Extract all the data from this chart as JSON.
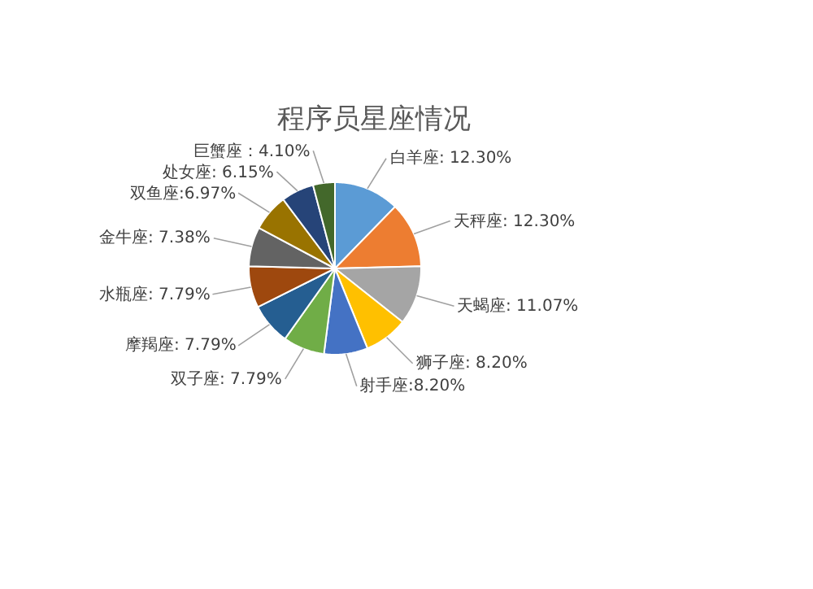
{
  "chart_data": {
    "type": "pie",
    "title": "程序员星座情况",
    "categories": [
      "白羊座: 12.30%",
      "天秤座: 12.30%",
      "天蝎座: 11.07%",
      "狮子座: 8.20%",
      "射手座:8.20%",
      "双子座: 7.79%",
      "摩羯座: 7.79%",
      "水瓶座: 7.79%",
      "金牛座: 7.38%",
      "双鱼座:6.97%",
      "处女座: 6.15%",
      "巨蟹座：4.10%"
    ],
    "values": [
      12.3,
      12.3,
      11.07,
      8.2,
      8.2,
      7.79,
      7.79,
      7.79,
      7.38,
      6.97,
      6.15,
      4.1
    ],
    "colors": [
      "#5b9bd5",
      "#ed7d31",
      "#a5a5a5",
      "#ffc000",
      "#4472c4",
      "#70ad47",
      "#255e91",
      "#9e480e",
      "#636363",
      "#997300",
      "#264478",
      "#43682b"
    ]
  }
}
